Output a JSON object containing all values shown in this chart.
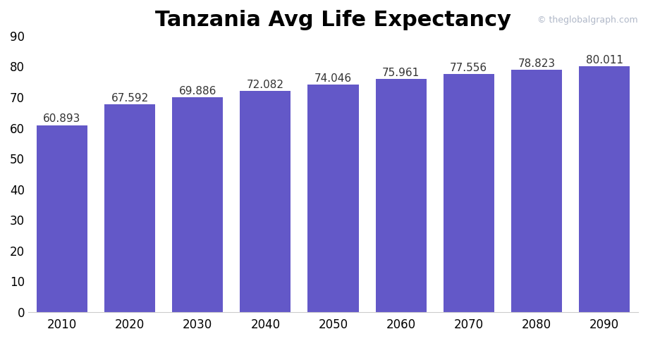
{
  "title": "Tanzania Avg Life Expectancy",
  "categories": [
    "2010",
    "2020",
    "2030",
    "2040",
    "2050",
    "2060",
    "2070",
    "2080",
    "2090"
  ],
  "values": [
    60.893,
    67.592,
    69.886,
    72.082,
    74.046,
    75.961,
    77.556,
    78.823,
    80.011
  ],
  "bar_color": "#6358C8",
  "label_color": "#333333",
  "background_color": "#ffffff",
  "title_fontsize": 22,
  "title_fontweight": "bold",
  "bar_label_fontsize": 11,
  "tick_fontsize": 12,
  "ylim": [
    0,
    90
  ],
  "yticks": [
    0,
    10,
    20,
    30,
    40,
    50,
    60,
    70,
    80,
    90
  ],
  "watermark": "© theglobalgraph.com",
  "watermark_color": "#b0b8c8",
  "watermark_fontsize": 9,
  "bar_width": 0.75
}
